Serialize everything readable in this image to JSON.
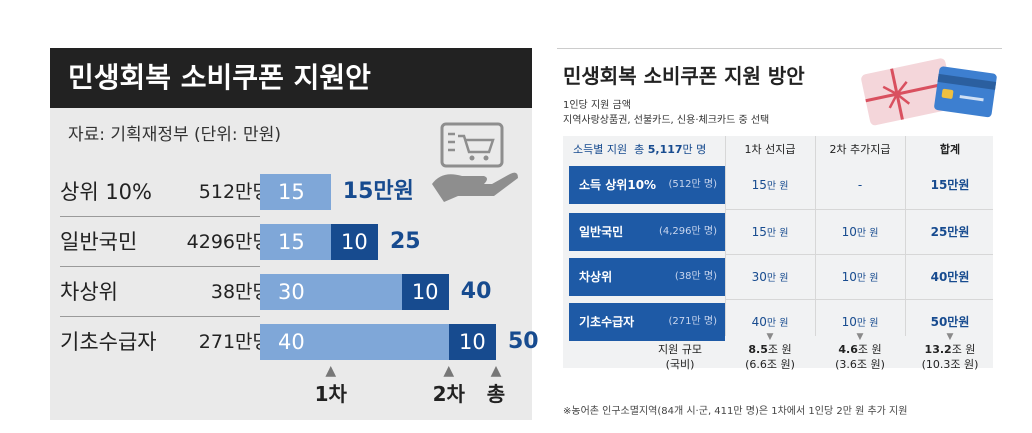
{
  "chart_data": [
    {
      "type": "bar",
      "title": "민생회복 소비쿠폰 지원안",
      "source": "자료: 기획재정부 (단위: 만원)",
      "categories": [
        "상위 10%",
        "일반국민",
        "차상위",
        "기초수급자"
      ],
      "counts": [
        "512만명",
        "4296만명",
        "38만명",
        "271만명"
      ],
      "series": [
        {
          "name": "1차",
          "values": [
            15,
            15,
            30,
            40
          ],
          "color": "#7fa7d8"
        },
        {
          "name": "2차",
          "values": [
            0,
            10,
            10,
            10
          ],
          "color": "#174b8f"
        }
      ],
      "totals": [
        "15만원",
        "25",
        "40",
        "50"
      ],
      "markers": [
        "1차",
        "2차",
        "총"
      ],
      "xlim": [
        0,
        50
      ]
    },
    {
      "type": "table",
      "title": "민생회복 소비쿠폰 지원 방안",
      "subtitle_1": "1인당 지원 금액",
      "subtitle_2": "지역사랑상품권, 선불카드, 신용·체크카드 중 선택",
      "header_lead": "소득별 지원",
      "header_total_label": "총",
      "header_total_value": "5,117",
      "header_total_unit": "만 명",
      "columns": [
        "1차 선지급",
        "2차 추가지급",
        "합계"
      ],
      "rows": [
        {
          "name": "소득 상위10%",
          "count": "(512만 명)",
          "first": "15",
          "second": "-",
          "sum": "15만원"
        },
        {
          "name": "일반국민",
          "count": "(4,296만 명)",
          "first": "15",
          "second": "10",
          "sum": "25만원"
        },
        {
          "name": "차상위",
          "count": "(38만 명)",
          "first": "30",
          "second": "10",
          "sum": "40만원"
        },
        {
          "name": "기초수급자",
          "count": "(271만 명)",
          "first": "40",
          "second": "10",
          "sum": "50만원"
        }
      ],
      "unit": "만 원",
      "scale_label_1": "지원 규모",
      "scale_label_2": "(국비)",
      "scale": [
        {
          "value": "8.5",
          "unit": "조 원",
          "sub": "(6.6조 원)"
        },
        {
          "value": "4.6",
          "unit": "조 원",
          "sub": "(3.6조 원)"
        },
        {
          "value": "13.2",
          "unit": "조 원",
          "sub": "(10.3조 원)"
        }
      ],
      "footnote": "※농어촌 인구소멸지역(84개 시·군, 411만 명)은 1차에서 1인당 2만 원 추가 지원"
    }
  ],
  "colors": {
    "light_bar": "#7fa7d8",
    "dark_bar": "#174b8f",
    "title_bg": "#222222",
    "row_blue": "#1e5aa6"
  },
  "icons": [
    "cart-on-hand-icon",
    "gift-card-icon",
    "credit-card-icon"
  ]
}
